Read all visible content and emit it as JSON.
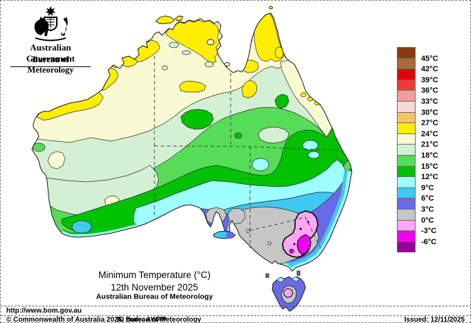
{
  "header": {
    "government": "Australian Government",
    "bureau": "Bureau of Meteorology",
    "crest_icon": "commonwealth-coat-of-arms"
  },
  "title_block": {
    "title": "Minimum Temperature (°C)",
    "date": "12th November 2025",
    "org": "Australian Bureau of Meteorology"
  },
  "url": "http://www.bom.gov.au",
  "footer": {
    "copyright": "© Commonwealth of Australia 2025, Bureau of Meteorology",
    "id_code": "ID code: AWAP",
    "issued": "Issued: 12/11/2025"
  },
  "legend": {
    "labels": [
      "45°C",
      "42°C",
      "39°C",
      "36°C",
      "33°C",
      "30°C",
      "27°C",
      "24°C",
      "21°C",
      "18°C",
      "15°C",
      "12°C",
      "9°C",
      "6°C",
      "3°C",
      "0°C",
      "-3°C",
      "-6°C"
    ],
    "colors": [
      "#8C3B10",
      "#A86A38",
      "#DD0505",
      "#EE3A3A",
      "#F49B9B",
      "#FBD9D9",
      "#F6C464",
      "#FFEE00",
      "#FAFAD2",
      "#D4F0D4",
      "#57DC57",
      "#00C200",
      "#9EFFFF",
      "#3FC8F2",
      "#6A6AE8",
      "#C6C6C6",
      "#FFA6F6",
      "#EE00EE",
      "#990099"
    ]
  },
  "map_colors": {
    "t24_27": "#FFEE00",
    "t21_24": "#FAFAD2",
    "t18_21": "#D4F0D4",
    "t15_18": "#57DC57",
    "t12_15": "#00C200",
    "t9_12": "#9EFFFF",
    "t6_9": "#3FC8F2",
    "t3_6": "#6A6AE8",
    "t0_3": "#C6C6C6",
    "tm3_0": "#FFA6F6",
    "tm6_m3": "#EE00EE",
    "coast": "#111111",
    "contour": "#2a2a2a",
    "border": "#444444"
  }
}
